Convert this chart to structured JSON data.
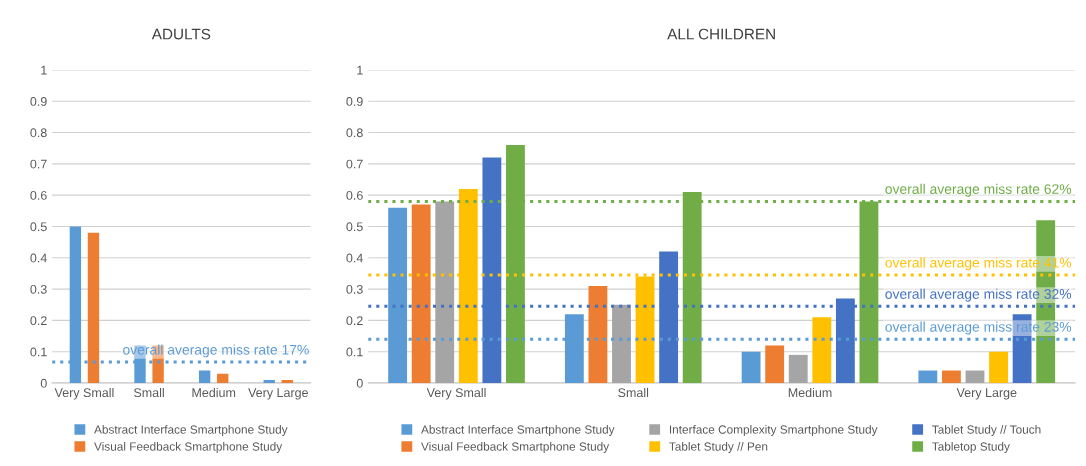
{
  "chart_data": [
    {
      "type": "bar",
      "title": "ADULTS",
      "categories": [
        "Very Small",
        "Small",
        "Medium",
        "Very Large"
      ],
      "series": [
        {
          "name": "Abstract Interface Smartphone Study",
          "color": "#5b9bd5",
          "values": [
            0.5,
            0.12,
            0.04,
            0.01
          ]
        },
        {
          "name": "Visual Feedback Smartphone Study",
          "color": "#ed7d31",
          "values": [
            0.48,
            0.12,
            0.03,
            0.01
          ]
        }
      ],
      "ylim": [
        0,
        1
      ],
      "yticks": [
        0,
        0.1,
        0.2,
        0.3,
        0.4,
        0.5,
        0.6,
        0.7,
        0.8,
        0.9,
        1
      ],
      "grid": "y",
      "legend": "bottom",
      "ref_lines": [
        {
          "axis": "y",
          "value": 0.067,
          "label": "overall average miss rate 17%",
          "color": "#5b9bd5",
          "line_style": "dotted"
        }
      ]
    },
    {
      "type": "bar",
      "title": "ALL CHILDREN",
      "categories": [
        "Very Small",
        "Small",
        "Medium",
        "Very Large"
      ],
      "series": [
        {
          "name": "Abstract Interface Smartphone Study",
          "color": "#5b9bd5",
          "values": [
            0.56,
            0.22,
            0.1,
            0.04
          ]
        },
        {
          "name": "Visual Feedback Smartphone Study",
          "color": "#ed7d31",
          "values": [
            0.57,
            0.31,
            0.12,
            0.04
          ]
        },
        {
          "name": "Interface Complexity Smartphone Study",
          "color": "#a5a5a5",
          "values": [
            0.58,
            0.25,
            0.09,
            0.04
          ]
        },
        {
          "name": "Tablet Study // Pen",
          "color": "#ffc000",
          "values": [
            0.62,
            0.34,
            0.21,
            0.1
          ]
        },
        {
          "name": "Tablet Study // Touch",
          "color": "#4472c4",
          "values": [
            0.72,
            0.42,
            0.27,
            0.22
          ]
        },
        {
          "name": "Tabletop Study",
          "color": "#70ad47",
          "values": [
            0.76,
            0.61,
            0.58,
            0.52
          ]
        }
      ],
      "ylim": [
        0,
        1
      ],
      "yticks": [
        0,
        0.1,
        0.2,
        0.3,
        0.4,
        0.5,
        0.6,
        0.7,
        0.8,
        0.9,
        1
      ],
      "grid": "y",
      "legend": "bottom",
      "ref_lines": [
        {
          "axis": "y",
          "value": 0.58,
          "label": "overall average miss rate 62%",
          "color": "#70ad47",
          "line_style": "dotted"
        },
        {
          "axis": "y",
          "value": 0.345,
          "label": "overall average miss rate 41%",
          "color": "#ffc000",
          "line_style": "dotted"
        },
        {
          "axis": "y",
          "value": 0.245,
          "label": "overall average miss rate 32%",
          "color": "#4472c4",
          "line_style": "dotted"
        },
        {
          "axis": "y",
          "value": 0.14,
          "label": "overall average miss rate 23%",
          "color": "#5b9bd5",
          "line_style": "dotted"
        }
      ]
    }
  ]
}
